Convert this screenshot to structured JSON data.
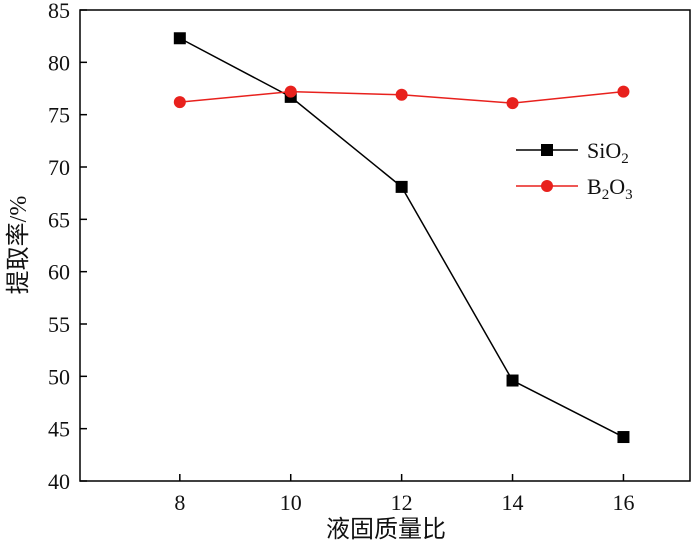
{
  "chart_data": {
    "type": "line",
    "xlabel": "液固质量比",
    "ylabel": "提取率/%",
    "x": [
      8,
      10,
      12,
      14,
      16
    ],
    "xlim": [
      6.2,
      17.2
    ],
    "ylim": [
      40,
      85
    ],
    "xticks": [
      "8",
      "10",
      "12",
      "14",
      "16"
    ],
    "yticks": [
      "40",
      "45",
      "50",
      "55",
      "60",
      "65",
      "70",
      "75",
      "80",
      "85"
    ],
    "grid": false,
    "legend_position": "right",
    "series": [
      {
        "name": "SiO2",
        "name_base": "SiO",
        "name_sub": "2",
        "marker": "square",
        "color": "#000000",
        "values": [
          82.3,
          76.7,
          68.1,
          49.6,
          44.2
        ]
      },
      {
        "name": "B2O3",
        "name_parts": [
          "B",
          "2",
          "O",
          "3"
        ],
        "marker": "circle",
        "color": "#e8211d",
        "values": [
          76.2,
          77.2,
          76.9,
          76.1,
          77.2
        ]
      }
    ]
  }
}
